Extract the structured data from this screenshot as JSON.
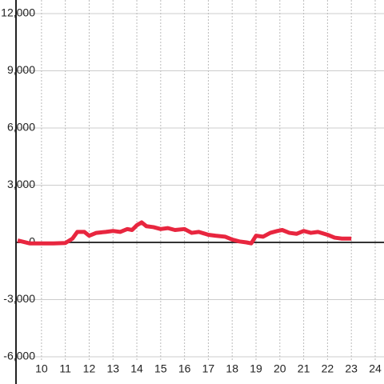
{
  "chart_data": {
    "type": "line",
    "x": [
      9.0,
      9.5,
      10.0,
      10.5,
      11.0,
      11.3,
      11.5,
      11.8,
      12.0,
      12.3,
      12.7,
      13.0,
      13.3,
      13.6,
      13.8,
      14.0,
      14.2,
      14.4,
      14.7,
      15.0,
      15.3,
      15.6,
      16.0,
      16.3,
      16.6,
      17.0,
      17.3,
      17.7,
      18.0,
      18.3,
      18.6,
      18.8,
      19.0,
      19.3,
      19.6,
      19.9,
      20.1,
      20.4,
      20.7,
      21.0,
      21.3,
      21.6,
      22.0,
      22.3,
      22.6,
      23.0
    ],
    "series": [
      {
        "color": "#e8263f",
        "values": [
          100,
          -50,
          -50,
          -50,
          -30,
          200,
          550,
          550,
          350,
          500,
          550,
          600,
          550,
          700,
          650,
          900,
          1050,
          850,
          800,
          700,
          750,
          650,
          700,
          500,
          550,
          400,
          350,
          300,
          150,
          50,
          0,
          -50,
          350,
          300,
          500,
          600,
          650,
          500,
          450,
          600,
          500,
          550,
          400,
          250,
          200,
          200
        ]
      }
    ],
    "xlim": [
      8.93,
      24.37
    ],
    "xticks": [
      10,
      11,
      12,
      13,
      14,
      15,
      16,
      17,
      18,
      19,
      20,
      21,
      22,
      23,
      24
    ],
    "ylim": [
      -6000,
      12000
    ],
    "yticks": [
      {
        "value": -6000,
        "label": "-6,000"
      },
      {
        "value": -3000,
        "label": "-3,000"
      },
      0,
      {
        "value": 3000,
        "label": "3,000"
      },
      {
        "value": 6000,
        "label": "6,000"
      },
      {
        "value": 9000,
        "label": "9,000"
      },
      {
        "value": 12000,
        "label": "12,000"
      }
    ],
    "grid": true
  }
}
